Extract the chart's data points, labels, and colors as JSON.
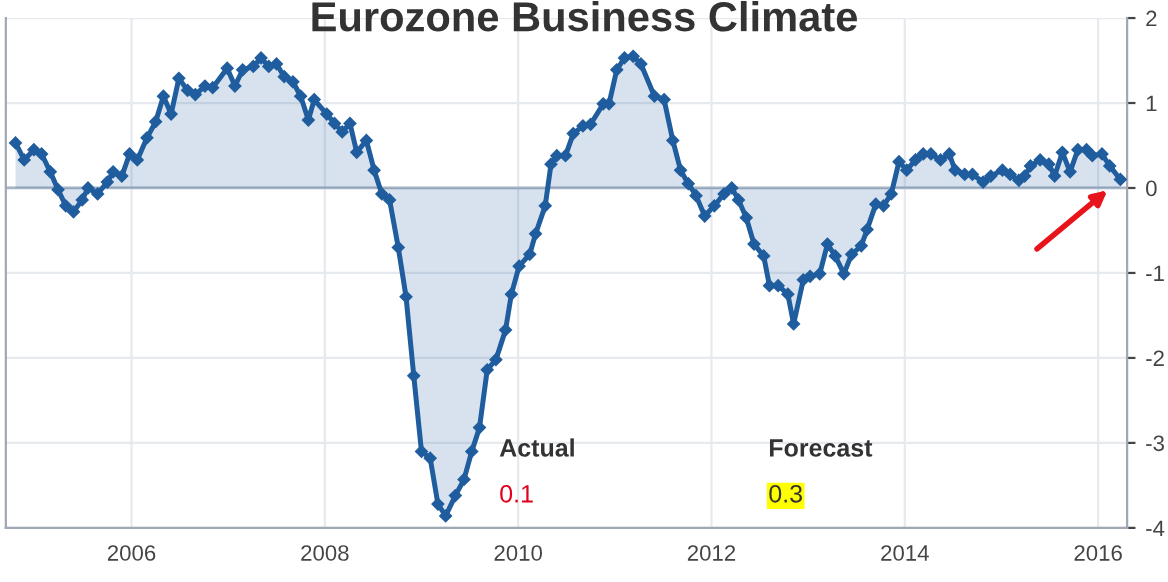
{
  "chart_data": {
    "type": "area",
    "title": "Eurozone Business Climate",
    "x": [
      2004.8,
      2004.89,
      2004.99,
      2005.07,
      2005.16,
      2005.24,
      2005.32,
      2005.4,
      2005.49,
      2005.55,
      2005.65,
      2005.75,
      2005.81,
      2005.9,
      2005.98,
      2006.06,
      2006.16,
      2006.25,
      2006.33,
      2006.41,
      2006.49,
      2006.58,
      2006.66,
      2006.76,
      2006.84,
      2006.99,
      2007.07,
      2007.15,
      2007.26,
      2007.34,
      2007.42,
      2007.5,
      2007.58,
      2007.67,
      2007.75,
      2007.83,
      2007.89,
      2008.02,
      2008.1,
      2008.18,
      2008.26,
      2008.33,
      2008.43,
      2008.51,
      2008.59,
      2008.67,
      2008.76,
      2008.84,
      2008.92,
      2009.0,
      2009.09,
      2009.17,
      2009.25,
      2009.35,
      2009.44,
      2009.52,
      2009.6,
      2009.68,
      2009.77,
      2009.87,
      2009.93,
      2010.01,
      2010.12,
      2010.18,
      2010.28,
      2010.34,
      2010.4,
      2010.49,
      2010.57,
      2010.67,
      2010.75,
      2010.88,
      2010.94,
      2011.02,
      2011.1,
      2011.19,
      2011.27,
      2011.41,
      2011.51,
      2011.6,
      2011.68,
      2011.76,
      2011.84,
      2011.93,
      2012.03,
      2012.13,
      2012.21,
      2012.28,
      2012.36,
      2012.44,
      2012.54,
      2012.6,
      2012.69,
      2012.79,
      2012.85,
      2012.95,
      2013.02,
      2013.12,
      2013.2,
      2013.28,
      2013.37,
      2013.45,
      2013.55,
      2013.61,
      2013.7,
      2013.78,
      2013.86,
      2013.94,
      2014.02,
      2014.11,
      2014.19,
      2014.27,
      2014.37,
      2014.46,
      2014.52,
      2014.62,
      2014.7,
      2014.81,
      2014.89,
      2015.01,
      2015.09,
      2015.18,
      2015.24,
      2015.3,
      2015.4,
      2015.49,
      2015.55,
      2015.63,
      2015.71,
      2015.79,
      2015.88,
      2015.94,
      2016.04,
      2016.12,
      2016.23
    ],
    "series": [
      {
        "color": "#1f5d9e",
        "values": [
          0.53,
          0.33,
          0.45,
          0.4,
          0.19,
          -0.02,
          -0.21,
          -0.28,
          -0.14,
          0,
          -0.07,
          0.07,
          0.19,
          0.14,
          0.4,
          0.33,
          0.59,
          0.78,
          1.08,
          0.87,
          1.29,
          1.15,
          1.1,
          1.2,
          1.18,
          1.41,
          1.2,
          1.39,
          1.43,
          1.53,
          1.43,
          1.46,
          1.31,
          1.25,
          1.08,
          0.8,
          1.04,
          0.87,
          0.76,
          0.66,
          0.76,
          0.42,
          0.56,
          0.21,
          -0.07,
          -0.14,
          -0.7,
          -1.28,
          -2.21,
          -3.1,
          -3.18,
          -3.72,
          -3.86,
          -3.62,
          -3.43,
          -3.1,
          -2.82,
          -2.14,
          -2.02,
          -1.67,
          -1.25,
          -0.92,
          -0.78,
          -0.54,
          -0.21,
          0.28,
          0.38,
          0.38,
          0.64,
          0.73,
          0.75,
          0.99,
          0.99,
          1.39,
          1.53,
          1.55,
          1.46,
          1.08,
          1.04,
          0.56,
          0.21,
          0.05,
          -0.09,
          -0.33,
          -0.21,
          -0.07,
          0,
          -0.14,
          -0.35,
          -0.66,
          -0.8,
          -1.15,
          -1.15,
          -1.25,
          -1.6,
          -1.08,
          -1.04,
          -1.01,
          -0.66,
          -0.8,
          -1.01,
          -0.78,
          -0.68,
          -0.49,
          -0.19,
          -0.21,
          -0.07,
          0.31,
          0.21,
          0.33,
          0.4,
          0.4,
          0.33,
          0.4,
          0.21,
          0.16,
          0.16,
          0.07,
          0.14,
          0.21,
          0.16,
          0.09,
          0.14,
          0.26,
          0.33,
          0.28,
          0.14,
          0.42,
          0.19,
          0.45,
          0.45,
          0.38,
          0.4,
          0.26,
          0.1
        ]
      }
    ],
    "xlim": [
      2004.7,
      2016.3
    ],
    "xticks": [
      2006,
      2008,
      2010,
      2012,
      2014,
      2016
    ],
    "ylim": [
      -4,
      2
    ],
    "yticks": [
      -4,
      -3,
      -2,
      -1,
      0,
      1,
      2
    ],
    "grid": true,
    "marker": "diamond",
    "line_style": "solid",
    "annotations": [
      "Actual",
      "0.1",
      "Forecast",
      "0.3"
    ]
  }
}
